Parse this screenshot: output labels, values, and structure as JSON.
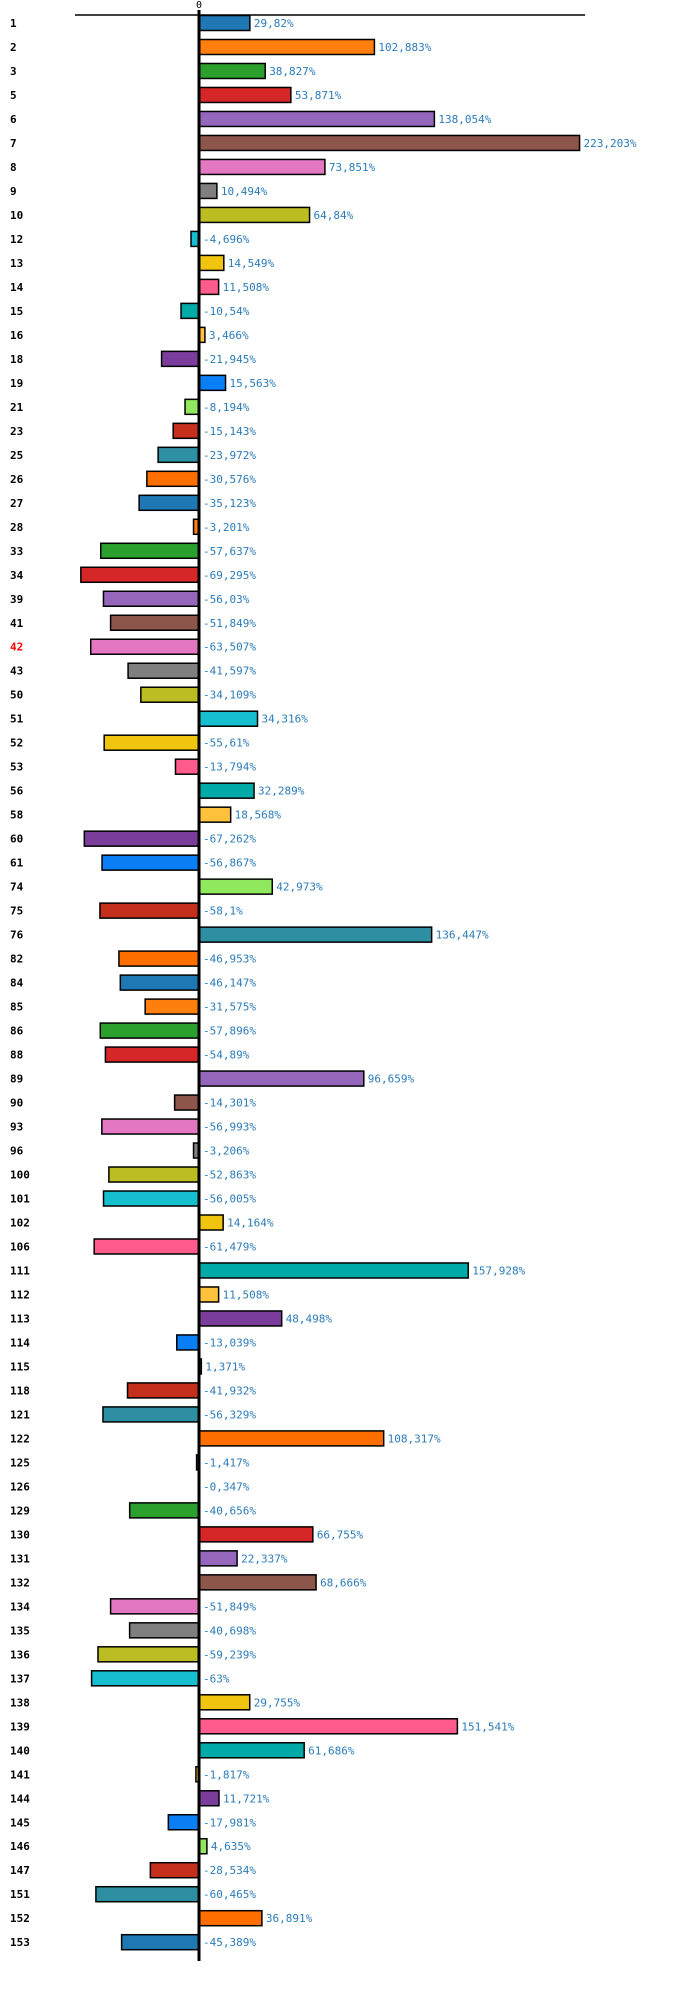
{
  "chart_data": {
    "type": "bar",
    "orientation": "horizontal",
    "title": "",
    "xlabel": "",
    "ylabel": "",
    "zero_tick_label": "0",
    "value_suffix": "%",
    "decimal_separator": ",",
    "highlighted_category": "42",
    "highlight_color": "#ff0000",
    "value_label_color": "#2b7bb9",
    "xlim": [
      -72,
      237
    ],
    "grid": false,
    "legend": "none",
    "palette": [
      "#1f77b4",
      "#ff7f0e",
      "#2ca02c",
      "#d62728",
      "#9467bd",
      "#8c564b",
      "#e377c2",
      "#7f7f7f",
      "#bcbd22",
      "#17becf",
      "#f1c40f",
      "#ff5c8d",
      "#00aaa6",
      "#ffc23d",
      "#7b3d9b",
      "#0a7ff5",
      "#90e85f",
      "#c4301c",
      "#2e8fa2",
      "#ff6f00"
    ],
    "categories": [
      "1",
      "2",
      "3",
      "5",
      "6",
      "7",
      "8",
      "9",
      "10",
      "12",
      "13",
      "14",
      "15",
      "16",
      "18",
      "19",
      "21",
      "23",
      "25",
      "26",
      "27",
      "28",
      "33",
      "34",
      "39",
      "41",
      "42",
      "43",
      "50",
      "51",
      "52",
      "53",
      "56",
      "58",
      "60",
      "61",
      "74",
      "75",
      "76",
      "82",
      "84",
      "85",
      "86",
      "88",
      "89",
      "90",
      "93",
      "96",
      "100",
      "101",
      "102",
      "106",
      "111",
      "112",
      "113",
      "114",
      "115",
      "118",
      "121",
      "122",
      "125",
      "126",
      "129",
      "130",
      "131",
      "132",
      "134",
      "135",
      "136",
      "137",
      "138",
      "139",
      "140",
      "141",
      "144",
      "145",
      "146",
      "147",
      "151",
      "152",
      "153"
    ],
    "values": [
      29.82,
      102.883,
      38.827,
      53.871,
      138.054,
      223.203,
      73.851,
      10.494,
      64.84,
      -4.696,
      14.549,
      11.508,
      -10.54,
      3.466,
      -21.945,
      15.563,
      -8.194,
      -15.143,
      -23.972,
      -30.576,
      -35.123,
      -3.201,
      -57.637,
      -69.295,
      -56.03,
      -51.849,
      -63.507,
      -41.597,
      -34.109,
      34.316,
      -55.61,
      -13.794,
      32.289,
      18.568,
      -67.262,
      -56.867,
      42.973,
      -58.1,
      136.447,
      -46.953,
      -46.147,
      -31.575,
      -57.896,
      -54.89,
      96.659,
      -14.301,
      -56.993,
      -3.206,
      -52.863,
      -56.005,
      14.164,
      -61.479,
      157.928,
      11.508,
      48.498,
      -13.039,
      1.371,
      -41.932,
      -56.329,
      108.317,
      -1.417,
      -0.347,
      -40.656,
      66.755,
      22.337,
      68.666,
      -51.849,
      -40.698,
      -59.239,
      -63,
      29.755,
      151.541,
      61.686,
      -1.817,
      11.721,
      -17.981,
      4.635,
      -28.534,
      -60.465,
      36.891,
      -45.389
    ],
    "value_labels": [
      "29,82%",
      "102,883%",
      "38,827%",
      "53,871%",
      "138,054%",
      "223,203%",
      "73,851%",
      "10,494%",
      "64,84%",
      "-4,696%",
      "14,549%",
      "11,508%",
      "-10,54%",
      "3,466%",
      "-21,945%",
      "15,563%",
      "-8,194%",
      "-15,143%",
      "-23,972%",
      "-30,576%",
      "-35,123%",
      "-3,201%",
      "-57,637%",
      "-69,295%",
      "-56,03%",
      "-51,849%",
      "-63,507%",
      "-41,597%",
      "-34,109%",
      "34,316%",
      "-55,61%",
      "-13,794%",
      "32,289%",
      "18,568%",
      "-67,262%",
      "-56,867%",
      "42,973%",
      "-58,1%",
      "136,447%",
      "-46,953%",
      "-46,147%",
      "-31,575%",
      "-57,896%",
      "-54,89%",
      "96,659%",
      "-14,301%",
      "-56,993%",
      "-3,206%",
      "-52,863%",
      "-56,005%",
      "14,164%",
      "-61,479%",
      "157,928%",
      "11,508%",
      "48,498%",
      "-13,039%",
      "1,371%",
      "-41,932%",
      "-56,329%",
      "108,317%",
      "-1,417%",
      "-0,347%",
      "-40,656%",
      "66,755%",
      "22,337%",
      "68,666%",
      "-51,849%",
      "-40,698%",
      "-59,239%",
      "-63%",
      "29,755%",
      "151,541%",
      "61,686%",
      "-1,817%",
      "11,721%",
      "-17,981%",
      "4,635%",
      "-28,534%",
      "-60,465%",
      "36,891%",
      "-45,389%"
    ]
  }
}
